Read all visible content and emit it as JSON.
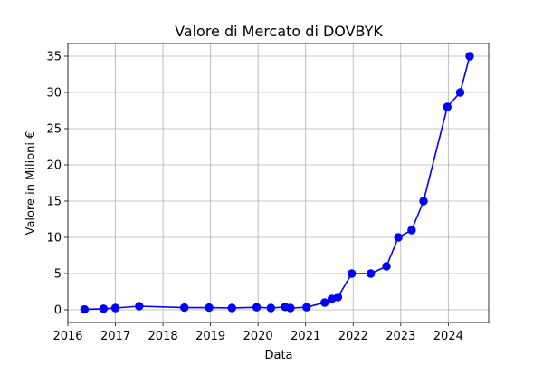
{
  "chart_data": {
    "type": "line",
    "title": "Valore di Mercato di DOVBYK",
    "xlabel": "Data",
    "ylabel": "Valore in Milioni €",
    "xlim": [
      2016.0,
      2024.85
    ],
    "ylim": [
      -1.75,
      36.75
    ],
    "grid": true,
    "x_ticks": [
      {
        "value": 2016,
        "label": "2016"
      },
      {
        "value": 2017,
        "label": "2017"
      },
      {
        "value": 2018,
        "label": "2018"
      },
      {
        "value": 2019,
        "label": "2019"
      },
      {
        "value": 2020,
        "label": "2020"
      },
      {
        "value": 2021,
        "label": "2021"
      },
      {
        "value": 2022,
        "label": "2022"
      },
      {
        "value": 2023,
        "label": "2023"
      },
      {
        "value": 2024,
        "label": "2024"
      }
    ],
    "y_ticks": [
      {
        "value": 0,
        "label": "0"
      },
      {
        "value": 5,
        "label": "5"
      },
      {
        "value": 10,
        "label": "10"
      },
      {
        "value": 15,
        "label": "15"
      },
      {
        "value": 20,
        "label": "20"
      },
      {
        "value": 25,
        "label": "25"
      },
      {
        "value": 30,
        "label": "30"
      },
      {
        "value": 35,
        "label": "35"
      }
    ],
    "series": [
      {
        "name": "Valore di Mercato",
        "color": "#0000ff",
        "marker": "circle",
        "x": [
          2016.35,
          2016.75,
          2017.0,
          2017.5,
          2018.45,
          2018.97,
          2019.45,
          2019.97,
          2020.27,
          2020.57,
          2020.68,
          2021.02,
          2021.4,
          2021.55,
          2021.68,
          2021.97,
          2022.37,
          2022.7,
          2022.95,
          2023.23,
          2023.48,
          2023.98,
          2024.25,
          2024.45
        ],
        "y": [
          0.05,
          0.15,
          0.25,
          0.5,
          0.3,
          0.3,
          0.25,
          0.35,
          0.25,
          0.4,
          0.25,
          0.35,
          1.0,
          1.5,
          1.75,
          5.0,
          5.0,
          6.0,
          10.0,
          11.0,
          15.0,
          28.0,
          30.0,
          35.0
        ]
      }
    ]
  }
}
